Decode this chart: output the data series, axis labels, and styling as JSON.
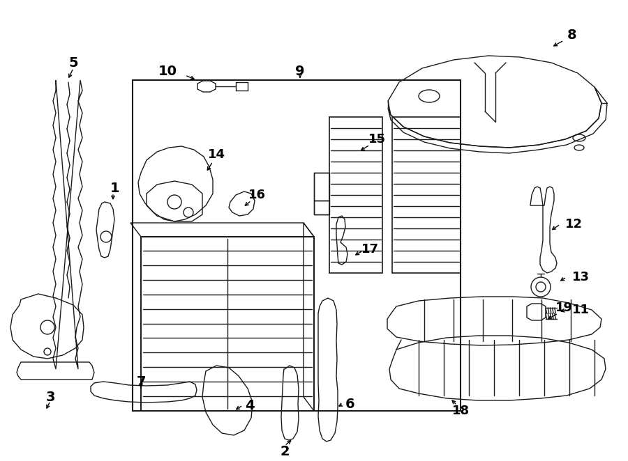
{
  "bg": "#ffffff",
  "lc": "#1a1a1a",
  "lw": 1.0,
  "fig_w": 9.0,
  "fig_h": 6.62,
  "dpi": 100,
  "xmax": 900,
  "ymax": 662
}
